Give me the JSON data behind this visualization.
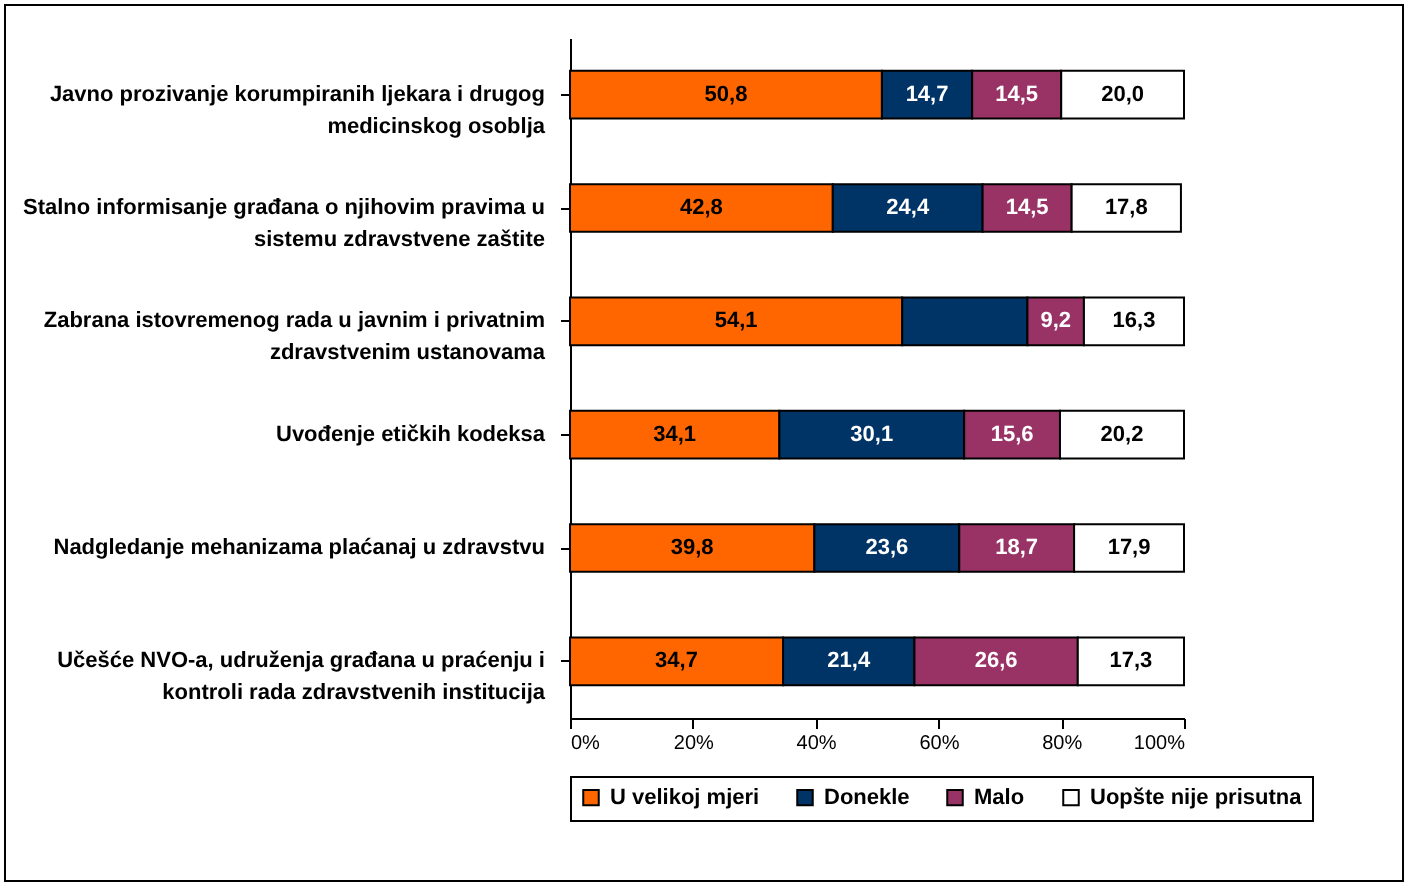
{
  "chart_data": {
    "type": "bar",
    "orientation": "horizontal",
    "stacked": true,
    "categories": [
      "Javno prozivanje korumpiranih ljekara i drugog medicinskog osoblja",
      "Stalno informisanje građana o njihovim pravima u sistemu zdravstvene zaštite",
      "Zabrana istovremenog rada u javnim i privatnim zdravstvenim ustanovama",
      "Uvođenje etičkih kodeksa",
      "Nadgledanje mehanizama plaćanaj u zdravstvu",
      "Učešće NVO-a, udruženja građana u praćenju i kontroli rada zdravstvenih institucija"
    ],
    "series": [
      {
        "name": "U velikoj mjeri",
        "color": "#ff6600",
        "values": [
          50.8,
          42.8,
          54.1,
          34.1,
          39.8,
          34.7
        ],
        "value_labels": [
          "50,8",
          "42,8",
          "54,1",
          "34,1",
          "39,8",
          "34,7"
        ]
      },
      {
        "name": "Donekle",
        "color": "#003366",
        "values": [
          14.7,
          24.4,
          20.4,
          30.1,
          23.6,
          21.4
        ],
        "value_labels": [
          "14,7",
          "24,4",
          null,
          "30,1",
          "23,6",
          "21,4"
        ]
      },
      {
        "name": "Malo",
        "color": "#993366",
        "values": [
          14.5,
          14.5,
          9.2,
          15.6,
          18.7,
          26.6
        ],
        "value_labels": [
          "14,5",
          "14,5",
          "9,2",
          "15,6",
          "18,7",
          "26,6"
        ]
      },
      {
        "name": "Uopšte nije prisutna",
        "color": "#ffffff",
        "values": [
          20.0,
          17.8,
          16.3,
          20.2,
          17.9,
          17.3
        ],
        "value_labels": [
          "20,0",
          "17,8",
          "16,3",
          "20,2",
          "17,9",
          "17,3"
        ]
      }
    ],
    "xlim": [
      0,
      100
    ],
    "xticks": [
      {
        "value": 0,
        "label": "0%"
      },
      {
        "value": 20,
        "label": "20%"
      },
      {
        "value": 40,
        "label": "40%"
      },
      {
        "value": 60,
        "label": "60%"
      },
      {
        "value": 80,
        "label": "80%"
      },
      {
        "value": 100,
        "label": "100%"
      }
    ],
    "grid": false,
    "legend": "bottom"
  }
}
